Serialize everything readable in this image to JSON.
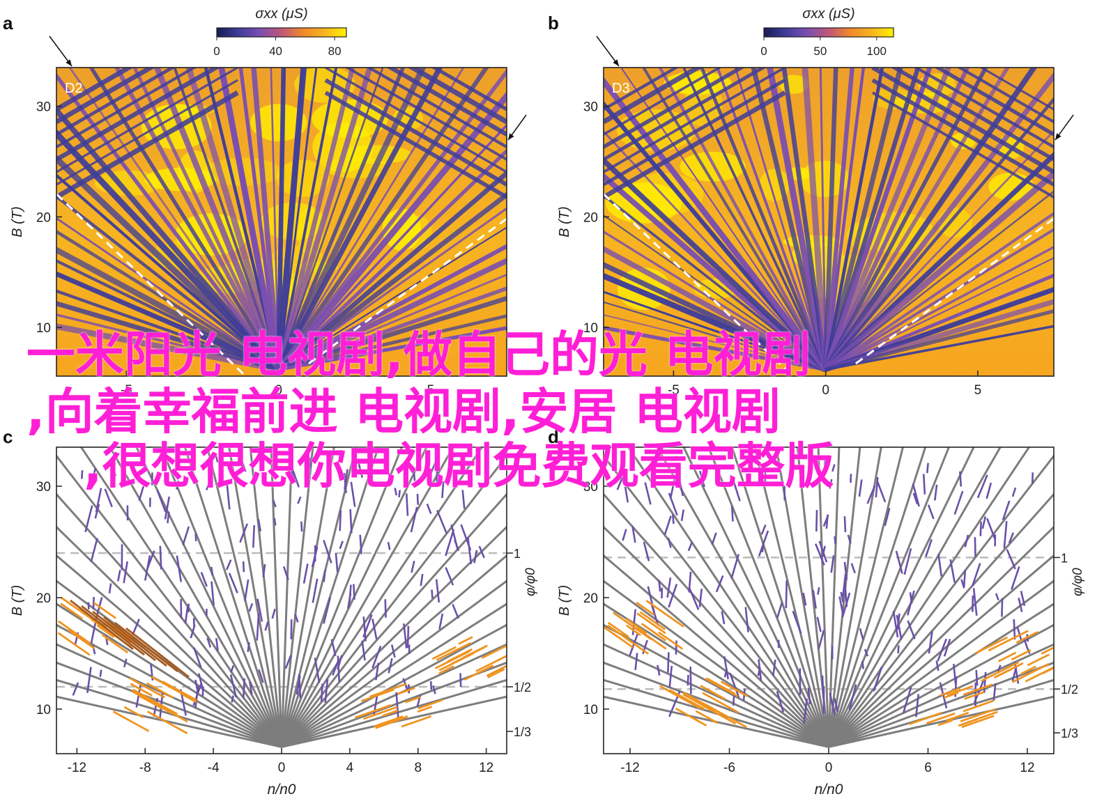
{
  "panels": [
    {
      "letter": "a",
      "kind": "heatmap",
      "tag": "D2",
      "colorbar": {
        "title": "σxx (μS)",
        "ticks": [
          "0",
          "40",
          "80"
        ],
        "max": 88
      },
      "x_ticks": [
        "-5",
        "0",
        "5"
      ],
      "y_ticks": [
        "10",
        "20",
        "30"
      ],
      "ylabel": "B (T)",
      "xlim": [
        -7.3,
        7.5
      ],
      "ylim": [
        5.6,
        33.5
      ],
      "arrow_count": 2
    },
    {
      "letter": "b",
      "kind": "heatmap",
      "tag": "D3",
      "colorbar": {
        "title": "σxx (μS)",
        "ticks": [
          "0",
          "50",
          "100"
        ],
        "max": 115
      },
      "x_ticks": [
        "-5",
        "0",
        "5"
      ],
      "y_ticks": [
        "10",
        "20",
        "30"
      ],
      "ylabel": "B (T)",
      "xlim": [
        -7.3,
        7.5
      ],
      "ylim": [
        5.6,
        33.5
      ],
      "arrow_count": 2
    },
    {
      "letter": "c",
      "kind": "lines",
      "x_ticks": [
        "-12",
        "-8",
        "-4",
        "0",
        "4",
        "8",
        "12"
      ],
      "y_ticks": [
        "10",
        "20",
        "30"
      ],
      "right_ticks": [
        "1",
        "1/2",
        "1/3"
      ],
      "right_label": "φ/φ0",
      "xlabel": "n/n0",
      "ylabel": "B (T)",
      "xlim": [
        -13.2,
        13.2
      ],
      "ylim": [
        6,
        33.5
      ],
      "dashed_levels": [
        24,
        12
      ]
    },
    {
      "letter": "d",
      "kind": "lines",
      "x_ticks": [
        "-12",
        "-6",
        "0",
        "6",
        "12"
      ],
      "y_ticks": [
        "10",
        "20",
        "30"
      ],
      "right_ticks": [
        "1",
        "1/2",
        "1/3"
      ],
      "right_label": "φ/φ0",
      "xlabel": "n/n0",
      "ylabel": "B (T)",
      "xlim": [
        -13.6,
        13.6
      ],
      "ylim": [
        6,
        33.5
      ],
      "dashed_levels": [
        23.6,
        11.8
      ]
    }
  ],
  "chart_data": [
    {
      "type": "heatmap",
      "panel": "a",
      "tag": "D2",
      "title": "",
      "xlabel": "",
      "ylabel": "B (T)",
      "xlim": [
        -7.3,
        7.5
      ],
      "ylim": [
        5.6,
        33.5
      ],
      "colorbar_label": "σxx (μS)",
      "colorbar_range": [
        0,
        88
      ],
      "x_ticks": [
        -5,
        0,
        5
      ],
      "y_ticks": [
        10,
        20,
        30
      ]
    },
    {
      "type": "heatmap",
      "panel": "b",
      "tag": "D3",
      "title": "",
      "xlabel": "",
      "ylabel": "B (T)",
      "xlim": [
        -7.3,
        7.5
      ],
      "ylim": [
        5.6,
        33.5
      ],
      "colorbar_label": "σxx (μS)",
      "colorbar_range": [
        0,
        115
      ],
      "x_ticks": [
        -5,
        0,
        5
      ],
      "y_ticks": [
        10,
        20,
        30
      ]
    },
    {
      "type": "line",
      "panel": "c",
      "title": "",
      "xlabel": "n/n0",
      "ylabel": "B (T)",
      "xlim": [
        -13.2,
        13.2
      ],
      "ylim": [
        6,
        33.5
      ],
      "right_axis_label": "φ/φ0",
      "right_axis_ticks": [
        "1",
        "1/2",
        "1/3"
      ],
      "dashed_levels_B": [
        24,
        12
      ],
      "x_ticks": [
        -12,
        -8,
        -4,
        0,
        4,
        8,
        12
      ],
      "y_ticks": [
        10,
        20,
        30
      ]
    },
    {
      "type": "line",
      "panel": "d",
      "title": "",
      "xlabel": "n/n0",
      "ylabel": "B (T)",
      "xlim": [
        -13.6,
        13.6
      ],
      "ylim": [
        6,
        33.5
      ],
      "right_axis_label": "φ/φ0",
      "right_axis_ticks": [
        "1",
        "1/2",
        "1/3"
      ],
      "dashed_levels_B": [
        23.6,
        11.8
      ],
      "x_ticks": [
        -12,
        -6,
        0,
        6,
        12
      ],
      "y_ticks": [
        10,
        20,
        30
      ]
    }
  ],
  "colors": {
    "colormap": [
      "#1a1a55",
      "#3f3d9a",
      "#7a4fb0",
      "#c0567a",
      "#ef8a2a",
      "#f8b41f",
      "#fff200"
    ],
    "gray_line": "#7d7d7d",
    "purple_line": "#6a50a8",
    "orange_line": "#ef9420",
    "brown_line": "#a55a20",
    "dashed": "#bbbbbb",
    "white_dashed": "#ffffff",
    "watermark": "#ff1fd6"
  },
  "watermark": {
    "lines": [
      "一米阳光 电视剧,做自己的光 电视剧",
      ",向着幸福前进 电视剧,安居 电视剧",
      ",很想很想你电视剧免费观看完整版"
    ]
  }
}
